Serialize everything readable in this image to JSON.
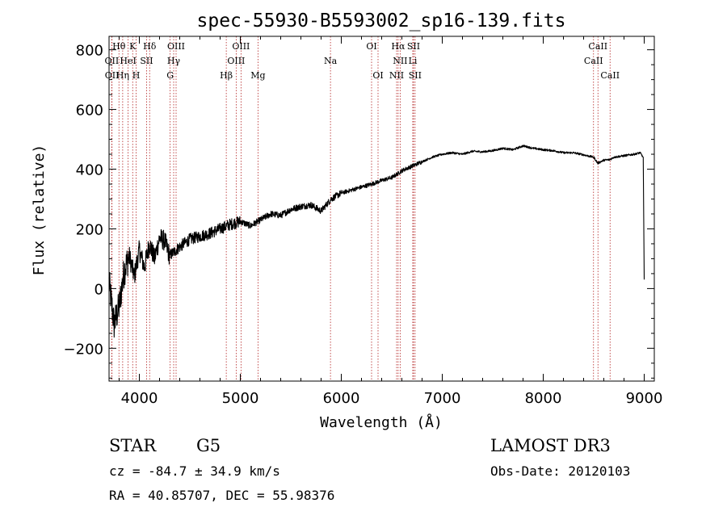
{
  "chart_data": {
    "type": "line",
    "title": "spec-55930-B5593002_sp16-139.fits",
    "xlabel": "Wavelength (Å)",
    "ylabel": "Flux (relative)",
    "xlim": [
      3700,
      9100
    ],
    "ylim": [
      -310,
      845
    ],
    "xticks": [
      4000,
      5000,
      6000,
      7000,
      8000,
      9000
    ],
    "yticks": [
      -200,
      0,
      200,
      400,
      600,
      800
    ],
    "grid": false,
    "line_color": "#000000",
    "marker_color": "#b22222",
    "series": [
      {
        "name": "spectrum",
        "x": [
          3700,
          3750,
          3800,
          3850,
          3900,
          3950,
          4000,
          4050,
          4100,
          4150,
          4200,
          4250,
          4300,
          4400,
          4500,
          4600,
          4700,
          4800,
          4900,
          5000,
          5100,
          5200,
          5300,
          5400,
          5500,
          5600,
          5700,
          5800,
          5900,
          6000,
          6100,
          6200,
          6300,
          6400,
          6500,
          6560,
          6600,
          6700,
          6800,
          6900,
          7000,
          7100,
          7200,
          7300,
          7400,
          7500,
          7600,
          7700,
          7800,
          7900,
          8000,
          8100,
          8200,
          8300,
          8400,
          8500,
          8540,
          8600,
          8660,
          8700,
          8800,
          8900,
          8960,
          8990,
          9000
        ],
        "y": [
          20,
          -120,
          -60,
          60,
          110,
          40,
          130,
          70,
          150,
          100,
          170,
          160,
          110,
          140,
          165,
          175,
          185,
          200,
          215,
          225,
          210,
          230,
          250,
          245,
          265,
          275,
          280,
          260,
          300,
          320,
          330,
          340,
          350,
          362,
          372,
          385,
          395,
          410,
          425,
          440,
          450,
          455,
          450,
          460,
          458,
          462,
          470,
          465,
          478,
          470,
          465,
          462,
          455,
          455,
          448,
          440,
          420,
          430,
          432,
          440,
          445,
          450,
          455,
          440,
          30
        ]
      }
    ],
    "line_markers": [
      {
        "name": "Hθ",
        "wavelength": 3798,
        "row": 0
      },
      {
        "name": "K",
        "wavelength": 3934,
        "row": 0
      },
      {
        "name": "Hδ",
        "wavelength": 4102,
        "row": 0
      },
      {
        "name": "OIII",
        "wavelength": 4364,
        "row": 0
      },
      {
        "name": "OIII",
        "wavelength": 5007,
        "row": 0
      },
      {
        "name": "OI",
        "wavelength": 6300,
        "row": 0
      },
      {
        "name": "Hα",
        "wavelength": 6563,
        "row": 0
      },
      {
        "name": "SII",
        "wavelength": 6716,
        "row": 0
      },
      {
        "name": "CaII",
        "wavelength": 8542,
        "row": 0
      },
      {
        "name": "OII",
        "wavelength": 3727,
        "row": 1
      },
      {
        "name": "HeI",
        "wavelength": 3889,
        "row": 1
      },
      {
        "name": "SII",
        "wavelength": 4072,
        "row": 1
      },
      {
        "name": "Hγ",
        "wavelength": 4340,
        "row": 1
      },
      {
        "name": "OIII",
        "wavelength": 4959,
        "row": 1
      },
      {
        "name": "Na",
        "wavelength": 5893,
        "row": 1
      },
      {
        "name": "NII",
        "wavelength": 6583,
        "row": 1
      },
      {
        "name": "Li",
        "wavelength": 6708,
        "row": 1
      },
      {
        "name": "CaII",
        "wavelength": 8498,
        "row": 1
      },
      {
        "name": "OII",
        "wavelength": 3729,
        "row": 2
      },
      {
        "name": "Hη",
        "wavelength": 3835,
        "row": 2
      },
      {
        "name": "H",
        "wavelength": 3968,
        "row": 2
      },
      {
        "name": "G",
        "wavelength": 4305,
        "row": 2
      },
      {
        "name": "Hβ",
        "wavelength": 4861,
        "row": 2
      },
      {
        "name": "Mg",
        "wavelength": 5175,
        "row": 2
      },
      {
        "name": "OI",
        "wavelength": 6364,
        "row": 2
      },
      {
        "name": "NII",
        "wavelength": 6548,
        "row": 2
      },
      {
        "name": "SII",
        "wavelength": 6731,
        "row": 2
      },
      {
        "name": "CaII",
        "wavelength": 8662,
        "row": 2
      }
    ]
  },
  "info": {
    "object_class": "STAR",
    "subclass": "G5",
    "survey": "LAMOST DR3",
    "redshift_line": "cz = -84.7 ± 34.9 km/s",
    "obs_date": "Obs-Date: 20120103",
    "coords": "RA =  40.85707, DEC =  55.98376"
  }
}
